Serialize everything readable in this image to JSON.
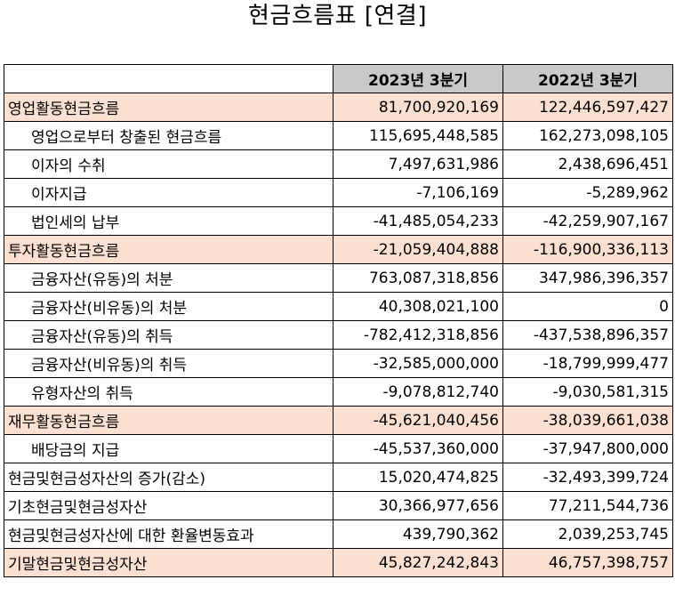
{
  "title": "현금흐름표 [연결]",
  "header": {
    "blank": "",
    "col_2023": "2023년 3분기",
    "col_2022": "2022년 3분기"
  },
  "rows": [
    {
      "label": "영업활동현금흐름",
      "v2023": "81,700,920,169",
      "v2022": "122,446,597,427"
    },
    {
      "label": "영업으로부터 창출된 현금흐름",
      "v2023": "115,695,448,585",
      "v2022": "162,273,098,105"
    },
    {
      "label": "이자의 수취",
      "v2023": "7,497,631,986",
      "v2022": "2,438,696,451"
    },
    {
      "label": "이자지급",
      "v2023": "-7,106,169",
      "v2022": "-5,289,962"
    },
    {
      "label": "법인세의 납부",
      "v2023": "-41,485,054,233",
      "v2022": "-42,259,907,167"
    },
    {
      "label": "투자활동현금흐름",
      "v2023": "-21,059,404,888",
      "v2022": "-116,900,336,113"
    },
    {
      "label": "금융자산(유동)의 처분",
      "v2023": "763,087,318,856",
      "v2022": "347,986,396,357"
    },
    {
      "label": "금융자산(비유동)의 처분",
      "v2023": "40,308,021,100",
      "v2022": "0"
    },
    {
      "label": "금융자산(유동)의 취득",
      "v2023": "-782,412,318,856",
      "v2022": "-437,538,896,357"
    },
    {
      "label": "금융자산(비유동)의 취득",
      "v2023": "-32,585,000,000",
      "v2022": "-18,799,999,477"
    },
    {
      "label": "유형자산의 취득",
      "v2023": "-9,078,812,740",
      "v2022": "-9,030,581,315"
    },
    {
      "label": "재무활동현금흐름",
      "v2023": "-45,621,040,456",
      "v2022": "-38,039,661,038"
    },
    {
      "label": "배당금의 지급",
      "v2023": "-45,537,360,000",
      "v2022": "-37,947,800,000"
    },
    {
      "label": "현금및현금성자산의 증가(감소)",
      "v2023": "15,020,474,825",
      "v2022": "-32,493,399,724"
    },
    {
      "label": "기초현금및현금성자산",
      "v2023": "30,366,977,656",
      "v2022": "77,211,544,736"
    },
    {
      "label": "현금및현금성자산에 대한 환율변동효과",
      "v2023": "439,790,362",
      "v2022": "2,039,253,745"
    },
    {
      "label": "기말현금및현금성자산",
      "v2023": "45,827,242,843",
      "v2022": "46,757,398,757"
    }
  ],
  "colors": {
    "header_bg": "#c9c9c9",
    "highlight_bg": "#fbe0d2",
    "border": "#000000"
  }
}
